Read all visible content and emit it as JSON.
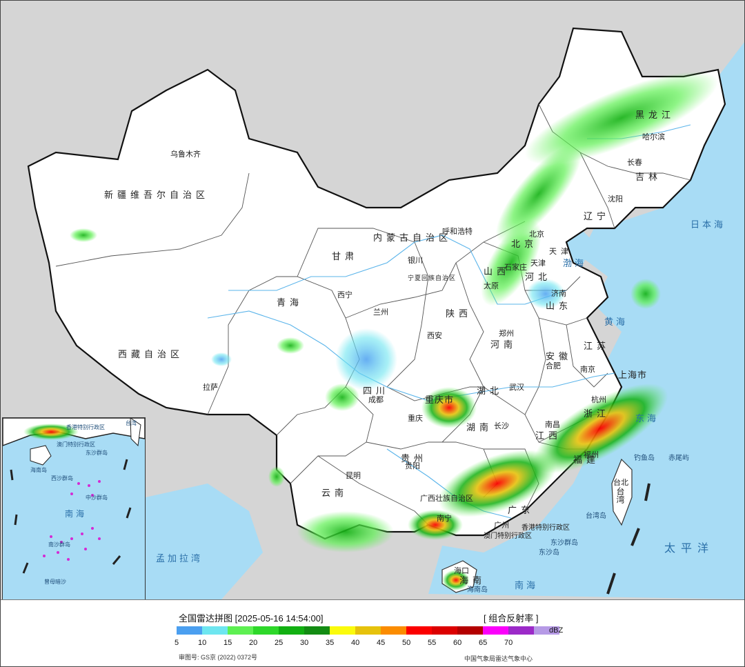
{
  "map": {
    "title": "全国雷达拼图 [2025-05-16 14:54:00]",
    "product": "[ 组合反射率 ]",
    "provinces": [
      {
        "id": "xinjiang",
        "name": "新疆维吾尔自治区"
      },
      {
        "id": "xizang",
        "name": "西藏自治区"
      },
      {
        "id": "qinghai",
        "name": "青海"
      },
      {
        "id": "gansu",
        "name": "甘肃"
      },
      {
        "id": "neimenggu",
        "name": "内蒙古自治区"
      },
      {
        "id": "ningxia",
        "name": "宁夏回族自治区"
      },
      {
        "id": "heilongjiang",
        "name": "黑龙江"
      },
      {
        "id": "jilin",
        "name": "吉林"
      },
      {
        "id": "liaoning",
        "name": "辽宁"
      },
      {
        "id": "beijing",
        "name": "北京"
      },
      {
        "id": "tianjin",
        "name": "天津"
      },
      {
        "id": "hebei",
        "name": "河北"
      },
      {
        "id": "shanxi",
        "name": "山西"
      },
      {
        "id": "shandong",
        "name": "山东"
      },
      {
        "id": "shaanxi",
        "name": "陕西"
      },
      {
        "id": "henan",
        "name": "河南"
      },
      {
        "id": "jiangsu",
        "name": "江苏"
      },
      {
        "id": "anhui",
        "name": "安徽"
      },
      {
        "id": "shanghai",
        "name": "上海市"
      },
      {
        "id": "hubei",
        "name": "湖北"
      },
      {
        "id": "sichuan",
        "name": "四川"
      },
      {
        "id": "chongqing",
        "name": "重庆市"
      },
      {
        "id": "zhejiang",
        "name": "浙江"
      },
      {
        "id": "hunan",
        "name": "湖南"
      },
      {
        "id": "jiangxi",
        "name": "江西"
      },
      {
        "id": "fujian",
        "name": "福建"
      },
      {
        "id": "guizhou",
        "name": "贵州"
      },
      {
        "id": "yunnan",
        "name": "云南"
      },
      {
        "id": "guangxi",
        "name": "广西壮族自治区"
      },
      {
        "id": "guangdong",
        "name": "广东"
      },
      {
        "id": "hainan",
        "name": "海南"
      },
      {
        "id": "taiwan",
        "name": "台湾"
      },
      {
        "id": "hongkong",
        "name": "香港特别行政区"
      },
      {
        "id": "macao",
        "name": "澳门特别行政区"
      }
    ],
    "cities": [
      {
        "id": "urumqi",
        "name": "乌鲁木齐"
      },
      {
        "id": "lhasa",
        "name": "拉萨"
      },
      {
        "id": "xining",
        "name": "西宁"
      },
      {
        "id": "lanzhou",
        "name": "兰州"
      },
      {
        "id": "yinchuan",
        "name": "银川"
      },
      {
        "id": "hohhot",
        "name": "呼和浩特"
      },
      {
        "id": "harbin",
        "name": "哈尔滨"
      },
      {
        "id": "changchun",
        "name": "长春"
      },
      {
        "id": "shenyang",
        "name": "沈阳"
      },
      {
        "id": "beijing",
        "name": "北京"
      },
      {
        "id": "tianjin",
        "name": "天津"
      },
      {
        "id": "shijiazhuang",
        "name": "石家庄"
      },
      {
        "id": "taiyuan",
        "name": "太原"
      },
      {
        "id": "jinan",
        "name": "济南"
      },
      {
        "id": "zhengzhou",
        "name": "郑州"
      },
      {
        "id": "xian",
        "name": "西安"
      },
      {
        "id": "hefei",
        "name": "合肥"
      },
      {
        "id": "nanjing",
        "name": "南京"
      },
      {
        "id": "wuhan",
        "name": "武汉"
      },
      {
        "id": "chengdu",
        "name": "成都"
      },
      {
        "id": "chongqing",
        "name": "重庆"
      },
      {
        "id": "hangzhou",
        "name": "杭州"
      },
      {
        "id": "changsha",
        "name": "长沙"
      },
      {
        "id": "nanchang",
        "name": "南昌"
      },
      {
        "id": "fuzhou",
        "name": "福州"
      },
      {
        "id": "guiyang",
        "name": "贵阳"
      },
      {
        "id": "kunming",
        "name": "昆明"
      },
      {
        "id": "nanning",
        "name": "南宁"
      },
      {
        "id": "guangzhou",
        "name": "广州"
      },
      {
        "id": "haikou",
        "name": "海口"
      },
      {
        "id": "taipei",
        "name": "台北"
      }
    ],
    "seas": [
      {
        "id": "japan",
        "name": "日本海"
      },
      {
        "id": "bohai",
        "name": "渤海"
      },
      {
        "id": "yellow",
        "name": "黄海"
      },
      {
        "id": "east",
        "name": "东海"
      },
      {
        "id": "south",
        "name": "南海"
      },
      {
        "id": "pacific",
        "name": "太平洋"
      },
      {
        "id": "bengal",
        "name": "孟加拉湾"
      }
    ],
    "islands": [
      {
        "id": "diaoyu",
        "name": "钓鱼岛"
      },
      {
        "id": "chiwei",
        "name": "赤尾屿"
      },
      {
        "id": "taiwan-island",
        "name": "台湾岛"
      },
      {
        "id": "dongsha-islands",
        "name": "东沙群岛"
      },
      {
        "id": "dongsha-island",
        "name": "东沙岛"
      },
      {
        "id": "hainan-island",
        "name": "海南岛"
      }
    ],
    "inset": {
      "labels": [
        "南海",
        "香港特别行政区",
        "澳门特别行政区",
        "海南岛",
        "东沙群岛",
        "西沙群岛",
        "中沙群岛",
        "南沙群岛",
        "曾母暗沙",
        "台湾"
      ]
    }
  },
  "legend": {
    "unit": "dBZ",
    "values": [
      5,
      10,
      15,
      20,
      25,
      30,
      35,
      40,
      45,
      50,
      55,
      60,
      65,
      70
    ],
    "colors": [
      "#4b9ff0",
      "#6ee6f0",
      "#5ef052",
      "#2ed82a",
      "#12b012",
      "#138c13",
      "#fbfb0c",
      "#e6c20c",
      "#fb8c00",
      "#fb0000",
      "#dc0000",
      "#b40000",
      "#fb00fb",
      "#9c2ac8",
      "#b69ae6"
    ],
    "review_number": "审图号: GS京 (2022) 0372号",
    "agency": "中国气象局雷达气象中心"
  }
}
